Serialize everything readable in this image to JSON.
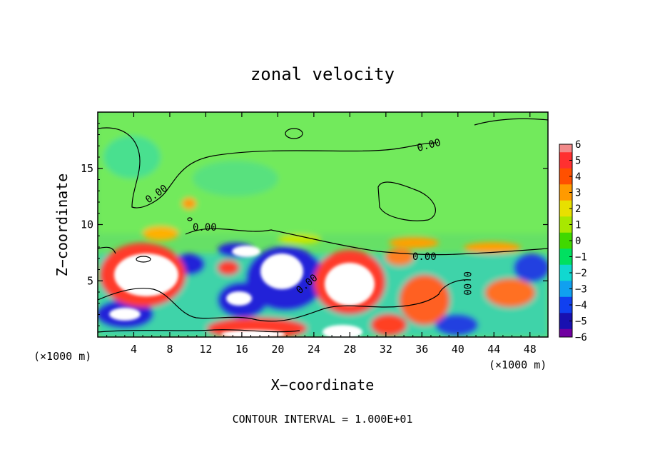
{
  "chart_data": {
    "type": "heatmap",
    "title": "zonal velocity",
    "xlabel": "X−coordinate",
    "ylabel": "Z−coordinate",
    "x_unit_left": "(×1000 m)",
    "x_unit_right": "(×1000 m)",
    "footer": "CONTOUR INTERVAL = 1.000E+01",
    "xlim": [
      0,
      50
    ],
    "ylim": [
      0,
      20
    ],
    "x_ticks": [
      4,
      8,
      12,
      16,
      20,
      24,
      28,
      32,
      36,
      40,
      44,
      48
    ],
    "y_ticks": [
      5,
      10,
      15
    ],
    "contour_labels": [
      "0.00",
      "0.00",
      "0.00",
      "0.00",
      "0.00",
      "0.00"
    ],
    "colorbar": {
      "levels": [
        6,
        5,
        4,
        3,
        2,
        1,
        0,
        -1,
        -2,
        -3,
        -4,
        -5,
        -6
      ],
      "colors": [
        "#f28a8a",
        "#ff3030",
        "#ff5000",
        "#ff9a00",
        "#e8e000",
        "#a8e800",
        "#40d800",
        "#00e060",
        "#10d8d0",
        "#10a0f0",
        "#1040f0",
        "#1810b0",
        "#7000a0"
      ]
    },
    "field_colors": {
      "background": "#66e066",
      "upper": "#70e860",
      "strong_positive": "#ffffff",
      "positive": "#ff3a2a",
      "negative": "#2020d8"
    }
  }
}
